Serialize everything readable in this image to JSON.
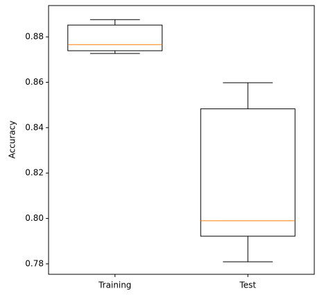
{
  "chart_data": {
    "type": "box",
    "ylabel": "Accuracy",
    "categories": [
      "Training",
      "Test"
    ],
    "whislo": [
      0.8727,
      0.7809
    ],
    "q1": [
      0.8739,
      0.7922
    ],
    "med": [
      0.8766,
      0.799
    ],
    "q3": [
      0.8852,
      0.8483
    ],
    "whishi": [
      0.8876,
      0.8598
    ],
    "box_color": "#000000",
    "median_color": "#ff7f0e",
    "ylim": [
      0.7754,
      0.8938
    ],
    "yticks": [
      0.78,
      {
        "value": 0.8,
        "label": "0.80"
      },
      0.82,
      0.84,
      0.86,
      0.88
    ],
    "grid": false
  }
}
